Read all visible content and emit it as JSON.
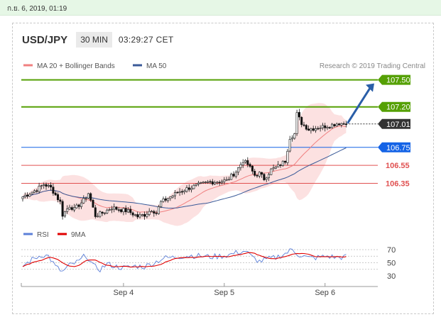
{
  "topbar": {
    "text": "ก.ย. 6, 2019, 01:19"
  },
  "header": {
    "pair": "USD/JPY",
    "timeframe": "30 MIN",
    "time": "03:29:27 CET"
  },
  "colors": {
    "green": "#55a005",
    "blue": "#1463e6",
    "red": "#e05050",
    "dark": "#333333",
    "ma20": "#f08080",
    "ma50": "#3a5a98",
    "band": "#fcdcdc",
    "rsi": "#5b7fd8",
    "rsi_ma": "#e00000",
    "arrow": "#2a5ea8"
  },
  "chart_data": [
    {
      "type": "candlestick",
      "title": "",
      "legend": [
        {
          "label": "MA 20 + Bollinger Bands",
          "color": "#f08080"
        },
        {
          "label": "MA 50",
          "color": "#3a5a98"
        }
      ],
      "credit": "Research © 2019 Trading Central",
      "ylim": [
        105.92,
        107.6
      ],
      "x_tick_labels": [
        "Sep 4",
        "Sep 5",
        "Sep 6"
      ],
      "x_tick_index": [
        43,
        86,
        129
      ],
      "levels": [
        {
          "value": 107.5,
          "label": "107.50",
          "kind": "resistance",
          "color": "#55a005"
        },
        {
          "value": 107.2,
          "label": "107.20",
          "kind": "resistance",
          "color": "#55a005"
        },
        {
          "value": 107.01,
          "label": "107.01",
          "kind": "last",
          "color": "#333333"
        },
        {
          "value": 106.75,
          "label": "106.75",
          "kind": "pivot",
          "color": "#1463e6"
        },
        {
          "value": 106.55,
          "label": "106.55",
          "kind": "support",
          "color": "#e05050"
        },
        {
          "value": 106.35,
          "label": "106.35",
          "kind": "support",
          "color": "#e05050"
        }
      ],
      "target_arrow": {
        "from": 107.01,
        "to": 107.5
      },
      "anchors": [
        [
          0,
          106.2
        ],
        [
          6,
          106.28
        ],
        [
          9,
          106.34
        ],
        [
          12,
          106.3
        ],
        [
          16,
          106.14
        ],
        [
          17,
          106.0
        ],
        [
          20,
          106.1
        ],
        [
          22,
          106.06
        ],
        [
          26,
          106.16
        ],
        [
          28,
          106.24
        ],
        [
          29,
          106.16
        ],
        [
          31,
          105.99
        ],
        [
          34,
          106.02
        ],
        [
          38,
          106.08
        ],
        [
          41,
          106.06
        ],
        [
          45,
          106.04
        ],
        [
          49,
          105.98
        ],
        [
          52,
          106.0
        ],
        [
          55,
          106.06
        ],
        [
          57,
          106.02
        ],
        [
          59,
          106.14
        ],
        [
          63,
          106.2
        ],
        [
          67,
          106.26
        ],
        [
          71,
          106.3
        ],
        [
          75,
          106.33
        ],
        [
          79,
          106.36
        ],
        [
          83,
          106.37
        ],
        [
          87,
          106.38
        ],
        [
          91,
          106.48
        ],
        [
          94,
          106.6
        ],
        [
          96,
          106.56
        ],
        [
          99,
          106.44
        ],
        [
          101,
          106.46
        ],
        [
          103,
          106.4
        ],
        [
          106,
          106.5
        ],
        [
          109,
          106.54
        ],
        [
          112,
          106.6
        ],
        [
          114,
          106.86
        ],
        [
          116,
          106.9
        ],
        [
          117,
          107.12
        ],
        [
          119,
          107.02
        ],
        [
          122,
          106.95
        ],
        [
          126,
          106.97
        ],
        [
          130,
          106.99
        ],
        [
          135,
          107.02
        ],
        [
          138,
          107.01
        ]
      ],
      "n_bars": 139
    },
    {
      "type": "line",
      "title": "",
      "series": [
        {
          "name": "RSI",
          "color": "#5b7fd8"
        },
        {
          "name": "9MA",
          "color": "#e00000"
        }
      ],
      "ylim": [
        30,
        70
      ],
      "y_tick_labels": [
        "70",
        "50",
        "30"
      ],
      "rsi_anchors": [
        [
          0,
          45
        ],
        [
          4,
          55
        ],
        [
          8,
          62
        ],
        [
          11,
          60
        ],
        [
          14,
          44
        ],
        [
          17,
          36
        ],
        [
          20,
          46
        ],
        [
          24,
          52
        ],
        [
          27,
          62
        ],
        [
          30,
          45
        ],
        [
          33,
          40
        ],
        [
          36,
          48
        ],
        [
          40,
          44
        ],
        [
          44,
          42
        ],
        [
          48,
          45
        ],
        [
          52,
          44
        ],
        [
          56,
          50
        ],
        [
          60,
          57
        ],
        [
          64,
          58
        ],
        [
          68,
          60
        ],
        [
          72,
          61
        ],
        [
          76,
          60
        ],
        [
          80,
          59
        ],
        [
          84,
          60
        ],
        [
          88,
          62
        ],
        [
          92,
          66
        ],
        [
          95,
          68
        ],
        [
          98,
          58
        ],
        [
          101,
          52
        ],
        [
          104,
          55
        ],
        [
          108,
          58
        ],
        [
          112,
          64
        ],
        [
          115,
          70
        ],
        [
          118,
          62
        ],
        [
          122,
          57
        ],
        [
          126,
          58
        ],
        [
          130,
          60
        ],
        [
          134,
          58
        ],
        [
          138,
          59
        ]
      ]
    }
  ]
}
